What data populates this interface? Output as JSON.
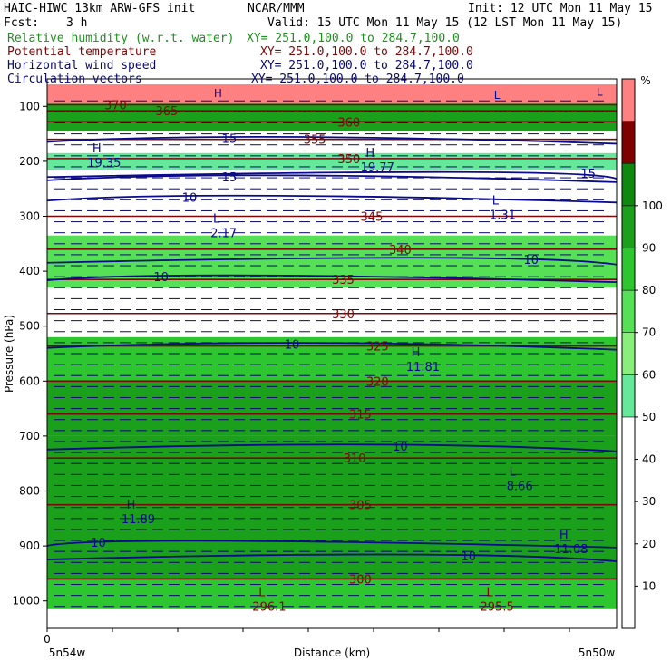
{
  "header": {
    "model": "HAIC-HIWC 13km ARW-GFS init",
    "org": "NCAR/MMM",
    "init": "Init: 12 UTC Mon 11 May 15",
    "fcst_label": "Fcst:",
    "fcst_value": "3 h",
    "valid": "Valid: 15 UTC Mon 11 May 15 (12 LST Mon 11 May 15)"
  },
  "fields": [
    {
      "name": "Relative humidity (w.r.t. water)",
      "xy": "XY= 251.0,100.0 to 284.7,100.0",
      "color": "#1f8f1f"
    },
    {
      "name": "Potential temperature",
      "xy": "XY= 251.0,100.0 to 284.7,100.0",
      "color": "#7a0a0a"
    },
    {
      "name": "Horizontal wind speed",
      "xy": "XY= 251.0,100.0 to 284.7,100.0",
      "color": "#0a0a6e"
    },
    {
      "name": "Circulation vectors",
      "xy": "XY= 251.0,100.0 to 284.7,100.0",
      "color": "#0a0a6e"
    }
  ],
  "chart_data": {
    "type": "heatmap",
    "title": "",
    "xlabel": "Distance (km)",
    "ylabel": "Pressure (hPa)",
    "x_origin_label": "0",
    "x_left_label": "5n54w",
    "x_right_label": "5n50w",
    "yticks": [
      100,
      200,
      300,
      400,
      500,
      600,
      700,
      800,
      900,
      1000
    ],
    "ylim": [
      1050,
      50
    ],
    "colorbar": {
      "unit": "%",
      "ticks": [
        10,
        20,
        30,
        40,
        50,
        60,
        70,
        80,
        90,
        100
      ],
      "bins": [
        {
          "range": [
            0,
            50
          ],
          "color": "#ffffff"
        },
        {
          "range": [
            50,
            60
          ],
          "color": "#66e89a"
        },
        {
          "range": [
            60,
            70
          ],
          "color": "#88f07a"
        },
        {
          "range": [
            70,
            80
          ],
          "color": "#55e055"
        },
        {
          "range": [
            80,
            90
          ],
          "color": "#2ec62e"
        },
        {
          "range": [
            90,
            100
          ],
          "color": "#1aa01a"
        },
        {
          "range": [
            100,
            110
          ],
          "color": "#0d8a0d"
        },
        {
          "range": [
            110,
            120
          ],
          "color": "#800000"
        },
        {
          "range": [
            120,
            130
          ],
          "color": "#ff8080"
        }
      ]
    },
    "rh_bands": [
      {
        "pressure": [
          60,
          95
        ],
        "value": 120
      },
      {
        "pressure": [
          95,
          145
        ],
        "value": 95
      },
      {
        "pressure": [
          145,
          185
        ],
        "value": 40
      },
      {
        "pressure": [
          185,
          215
        ],
        "value": 55
      },
      {
        "pressure": [
          215,
          335
        ],
        "value": 40
      },
      {
        "pressure": [
          335,
          430
        ],
        "value": 75
      },
      {
        "pressure": [
          430,
          520
        ],
        "value": 40
      },
      {
        "pressure": [
          520,
          600
        ],
        "value": 85
      },
      {
        "pressure": [
          600,
          700
        ],
        "value": 92
      },
      {
        "pressure": [
          700,
          960
        ],
        "value": 98
      },
      {
        "pressure": [
          960,
          1015
        ],
        "value": 85
      }
    ],
    "theta_labels": [
      {
        "text": "370",
        "pressure": 97,
        "x_frac": 0.12
      },
      {
        "text": "365",
        "pressure": 108,
        "x_frac": 0.21
      },
      {
        "text": "360",
        "pressure": 128,
        "x_frac": 0.53
      },
      {
        "text": "355",
        "pressure": 160,
        "x_frac": 0.47
      },
      {
        "text": "350",
        "pressure": 195,
        "x_frac": 0.53
      },
      {
        "text": "345",
        "pressure": 300,
        "x_frac": 0.57
      },
      {
        "text": "340",
        "pressure": 360,
        "x_frac": 0.62
      },
      {
        "text": "335",
        "pressure": 415,
        "x_frac": 0.52
      },
      {
        "text": "330",
        "pressure": 477,
        "x_frac": 0.52
      },
      {
        "text": "325",
        "pressure": 536,
        "x_frac": 0.58
      },
      {
        "text": "320",
        "pressure": 600,
        "x_frac": 0.58
      },
      {
        "text": "315",
        "pressure": 660,
        "x_frac": 0.55
      },
      {
        "text": "310",
        "pressure": 740,
        "x_frac": 0.54
      },
      {
        "text": "305",
        "pressure": 825,
        "x_frac": 0.55
      },
      {
        "text": "300",
        "pressure": 960,
        "x_frac": 0.55
      }
    ],
    "wind_labels": [
      {
        "text": "15",
        "pressure": 158,
        "x_frac": 0.32
      },
      {
        "text": "15",
        "pressure": 228,
        "x_frac": 0.32
      },
      {
        "text": "15",
        "pressure": 222,
        "x_frac": 0.95
      },
      {
        "text": "10",
        "pressure": 265,
        "x_frac": 0.25
      },
      {
        "text": "10",
        "pressure": 378,
        "x_frac": 0.85
      },
      {
        "text": "10",
        "pressure": 410,
        "x_frac": 0.2
      },
      {
        "text": "10",
        "pressure": 533,
        "x_frac": 0.43
      },
      {
        "text": "10",
        "pressure": 718,
        "x_frac": 0.62
      },
      {
        "text": "10",
        "pressure": 893,
        "x_frac": 0.09
      },
      {
        "text": "10",
        "pressure": 918,
        "x_frac": 0.74
      }
    ],
    "extrema": [
      {
        "type": "H",
        "value": "19.35",
        "pressure": 197,
        "x_frac": 0.1
      },
      {
        "type": "H",
        "value": "19.77",
        "pressure": 205,
        "x_frac": 0.58
      },
      {
        "type": "L",
        "value": "2.17",
        "pressure": 325,
        "x_frac": 0.31
      },
      {
        "type": "L",
        "value": "1.31",
        "pressure": 292,
        "x_frac": 0.8
      },
      {
        "type": "H",
        "value": "11.81",
        "pressure": 568,
        "x_frac": 0.66
      },
      {
        "type": "L",
        "value": "8.66",
        "pressure": 785,
        "x_frac": 0.83
      },
      {
        "type": "H",
        "value": "11.89",
        "pressure": 845,
        "x_frac": 0.16
      },
      {
        "type": "H",
        "value": "11.08",
        "pressure": 900,
        "x_frac": 0.92
      },
      {
        "type": "L",
        "value": "296.1",
        "pressure": 1005,
        "x_frac": 0.39
      },
      {
        "type": "L",
        "value": "295.5",
        "pressure": 1005,
        "x_frac": 0.79
      }
    ],
    "top_markers": [
      {
        "text": "H",
        "pressure": 75,
        "x_frac": 0.3
      },
      {
        "text": "L",
        "pressure": 78,
        "x_frac": 0.79
      },
      {
        "text": "L",
        "pressure": 72,
        "x_frac": 0.97
      }
    ],
    "grid": false
  }
}
